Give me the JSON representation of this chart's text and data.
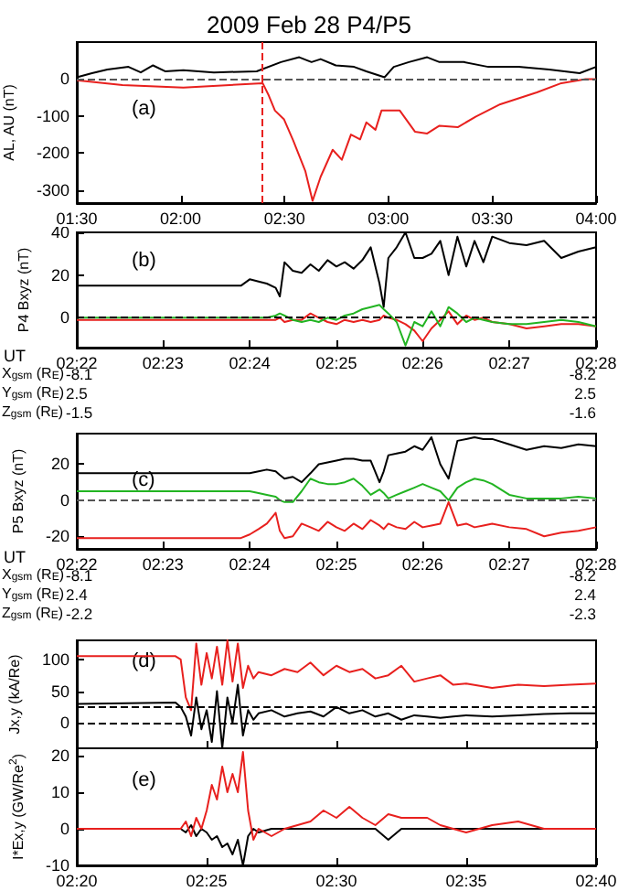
{
  "chart_data": [
    {
      "type": "line",
      "title": "2009 Feb 28 P4/P5",
      "ylabel": "AL, AU (nT)",
      "annotations": [
        "(a)"
      ],
      "xlim": [
        1.5,
        4.0
      ],
      "xticks": [
        {
          "value": 1.5,
          "label": "01:30"
        },
        {
          "value": 2.0,
          "label": "02:00"
        },
        {
          "value": 2.5,
          "label": "02:30"
        },
        {
          "value": 3.0,
          "label": "03:00"
        },
        {
          "value": 3.5,
          "label": "03:30"
        },
        {
          "value": 4.0,
          "label": "04:00"
        }
      ],
      "ylim": [
        -335,
        100
      ],
      "yticks": [
        -300,
        -200,
        -100,
        0
      ],
      "ref_lines": [
        {
          "axis": "y",
          "value": 0,
          "color": "#555555",
          "line_style": "dashed"
        },
        {
          "axis": "x",
          "value": 2.39,
          "color": "#e8201e",
          "line_style": "dashed"
        }
      ],
      "series": [
        {
          "color": "#000000",
          "x": [
            1.5,
            1.573,
            1.647,
            1.749,
            1.808,
            1.867,
            1.925,
            2.013,
            2.16,
            2.366,
            2.483,
            2.571,
            2.63,
            2.674,
            2.747,
            2.835,
            2.894,
            2.982,
            3.026,
            3.099,
            3.187,
            3.246,
            3.363,
            3.481,
            3.627,
            3.774,
            3.921,
            4.0
          ],
          "values": [
            5,
            16,
            26,
            33,
            18,
            37,
            21,
            24,
            18,
            21,
            46,
            59,
            46,
            54,
            37,
            33,
            21,
            5,
            33,
            46,
            59,
            46,
            46,
            33,
            33,
            26,
            16,
            33
          ]
        },
        {
          "color": "#e8201e",
          "x": [
            1.5,
            1.72,
            2.013,
            2.395,
            2.424,
            2.454,
            2.498,
            2.542,
            2.6,
            2.635,
            2.674,
            2.732,
            2.776,
            2.82,
            2.864,
            2.894,
            2.938,
            2.967,
            3.055,
            3.128,
            3.187,
            3.246,
            3.334,
            3.422,
            3.539,
            3.627,
            3.715,
            3.833,
            3.95,
            4.0
          ],
          "values": [
            -3,
            -16,
            -23,
            -11,
            -44,
            -85,
            -109,
            -166,
            -248,
            -329,
            -264,
            -191,
            -218,
            -150,
            -163,
            -117,
            -137,
            -85,
            -85,
            -142,
            -147,
            -126,
            -130,
            -101,
            -68,
            -52,
            -36,
            -11,
            0,
            0
          ]
        }
      ]
    },
    {
      "type": "line",
      "ylabel": "P4 Bxyz (nT)",
      "annotations": [
        "(b)",
        "UT",
        "X$_{gsm}$ (R$_{E}$)",
        "-8.1",
        "-8.2",
        "Y$_{gsm}$ (R$_{E}$)",
        "2.5",
        "2.5",
        "Z$_{gsm}$ (R$_{E}$)",
        "-1.5",
        "-1.6"
      ],
      "x": [
        2.3667,
        2.3983,
        2.4,
        2.4017,
        2.4033,
        2.405,
        2.4058,
        2.4067,
        2.4083,
        2.41,
        2.4117,
        2.4133,
        2.415,
        2.4167,
        2.4183,
        2.42,
        2.4217,
        2.4233,
        2.425,
        2.4258,
        2.4267,
        2.4283,
        2.43,
        2.4317,
        2.4333,
        2.435,
        2.4367,
        2.4383,
        2.44,
        2.4417,
        2.4433,
        2.445,
        2.4467,
        2.45,
        2.4533,
        2.4567,
        2.46,
        2.4633,
        2.4667
      ],
      "xlim": [
        2.3667,
        2.4667
      ],
      "xticks": [
        {
          "value": 2.3667,
          "label": "02:22"
        },
        {
          "value": 2.3833,
          "label": "02:23"
        },
        {
          "value": 2.4,
          "label": "02:24"
        },
        {
          "value": 2.4167,
          "label": "02:25"
        },
        {
          "value": 2.4333,
          "label": "02:26"
        },
        {
          "value": 2.45,
          "label": "02:27"
        },
        {
          "value": 2.4667,
          "label": "02:28"
        }
      ],
      "ylim": [
        -14,
        40
      ],
      "yticks": [
        0,
        20,
        40
      ],
      "ref_lines": [
        {
          "axis": "y",
          "value": 0,
          "color": "#000000",
          "line_style": "dashed"
        }
      ],
      "series": [
        {
          "color": "#000000",
          "values": [
            15,
            15,
            18,
            17,
            16,
            14,
            10,
            26,
            22,
            21,
            25,
            22,
            27,
            24,
            26,
            23,
            27,
            33,
            16,
            5,
            28,
            33,
            40,
            28,
            28,
            30,
            36,
            20,
            38,
            24,
            36,
            26,
            38,
            35,
            34,
            36,
            28,
            31,
            33
          ]
        },
        {
          "color": "#e8201e",
          "values": [
            -1,
            -1,
            -1,
            -1,
            -1,
            -1,
            0,
            -2,
            -1,
            -1,
            2,
            0,
            -2,
            -3,
            -1,
            -2,
            -1,
            -2,
            -1,
            1,
            0,
            -1,
            -3,
            -6,
            -11,
            -5,
            -1,
            3,
            -3,
            1,
            -1,
            0,
            -2,
            -3,
            -5,
            -4,
            -3,
            -3,
            -4
          ]
        },
        {
          "color": "#22b422",
          "values": [
            0,
            0,
            0,
            0,
            0,
            1,
            2,
            1,
            -1,
            -2,
            -1,
            -2,
            0,
            -1,
            1,
            2,
            4,
            5,
            6,
            4,
            2,
            -2,
            -13,
            -2,
            -4,
            3,
            -4,
            5,
            2,
            -2,
            0,
            -1,
            -2,
            -3,
            -3,
            -2,
            -1,
            -2,
            -4
          ]
        }
      ]
    },
    {
      "type": "line",
      "ylabel": "P5 Bxyz (nT)",
      "annotations": [
        "(c)",
        "UT",
        "X$_{gsm}$ (R$_{E}$)",
        "-8.1",
        "-8.2",
        "Y$_{gsm}$ (R$_{E}$)",
        "2.4",
        "2.4",
        "Z$_{gsm}$ (R$_{E}$)",
        "-2.2",
        "-2.3"
      ],
      "x": [
        2.3667,
        2.3983,
        2.4,
        2.4017,
        2.4033,
        2.405,
        2.4058,
        2.4067,
        2.4083,
        2.41,
        2.4117,
        2.4133,
        2.415,
        2.4167,
        2.4183,
        2.42,
        2.4217,
        2.4233,
        2.425,
        2.4258,
        2.4267,
        2.4283,
        2.43,
        2.4317,
        2.4333,
        2.435,
        2.4367,
        2.4383,
        2.44,
        2.4417,
        2.4433,
        2.445,
        2.4467,
        2.45,
        2.4533,
        2.4567,
        2.46,
        2.4633,
        2.4667
      ],
      "xlim": [
        2.3667,
        2.4667
      ],
      "xticks": [
        {
          "value": 2.3667,
          "label": "02:22"
        },
        {
          "value": 2.3833,
          "label": "02:23"
        },
        {
          "value": 2.4,
          "label": "02:24"
        },
        {
          "value": 2.4167,
          "label": "02:25"
        },
        {
          "value": 2.4333,
          "label": "02:26"
        },
        {
          "value": 2.45,
          "label": "02:27"
        },
        {
          "value": 2.4667,
          "label": "02:28"
        }
      ],
      "ylim": [
        -27,
        37
      ],
      "yticks": [
        -20,
        0,
        20
      ],
      "ref_lines": [
        {
          "axis": "y",
          "value": 0,
          "color": "#555555",
          "line_style": "dashed"
        }
      ],
      "series": [
        {
          "color": "#000000",
          "values": [
            15,
            15,
            15,
            16,
            17,
            16,
            14,
            12,
            13,
            10,
            15,
            20,
            21,
            22,
            23,
            23,
            22,
            22,
            10,
            16,
            25,
            26,
            27,
            30,
            28,
            35,
            20,
            12,
            33,
            34,
            35,
            34,
            34,
            31,
            28,
            30,
            29,
            31,
            30
          ]
        },
        {
          "color": "#22b422",
          "values": [
            5,
            5,
            5,
            4,
            3,
            2,
            0,
            -1,
            -1,
            5,
            12,
            10,
            9,
            9,
            10,
            12,
            8,
            3,
            6,
            4,
            1,
            3,
            5,
            7,
            9,
            7,
            5,
            0,
            7,
            10,
            12,
            11,
            9,
            3,
            1,
            1,
            1,
            2,
            1
          ]
        },
        {
          "color": "#e8201e",
          "values": [
            -21,
            -21,
            -19,
            -16,
            -13,
            -7,
            -17,
            -21,
            -20,
            -13,
            -15,
            -17,
            -12,
            -15,
            -17,
            -13,
            -16,
            -11,
            -14,
            -16,
            -13,
            -15,
            -16,
            -12,
            -15,
            -14,
            -13,
            -1,
            -14,
            -13,
            -15,
            -14,
            -13,
            -15,
            -16,
            -20,
            -18,
            -17,
            -15
          ]
        }
      ]
    },
    {
      "type": "line",
      "ylabel": "Jx,y (kA/Re)",
      "annotations": [
        "(d)"
      ],
      "tick_labels": "y",
      "x": [
        2.3333,
        2.3967,
        2.4,
        2.4033,
        2.4067,
        2.41,
        2.4133,
        2.4167,
        2.42,
        2.4233,
        2.4267,
        2.43,
        2.4333,
        2.4367,
        2.44,
        2.4433,
        2.4467,
        2.45,
        2.4583,
        2.4667,
        2.475,
        2.4833,
        2.4917,
        2.5,
        2.5083,
        2.5167,
        2.525,
        2.5333,
        2.5417,
        2.55,
        2.5583,
        2.5667,
        2.575,
        2.5833,
        2.6,
        2.6167,
        2.6333,
        2.65,
        2.6667
      ],
      "xlim": [
        2.3333,
        2.6667
      ],
      "xticks": [
        {
          "value": 2.3333,
          "label": null
        },
        {
          "value": 2.4167,
          "label": null
        },
        {
          "value": 2.5,
          "label": null
        },
        {
          "value": 2.5833,
          "label": null
        },
        {
          "value": 2.6667,
          "label": null
        }
      ],
      "ylim": [
        -40,
        130
      ],
      "yticks": [
        0,
        50,
        100
      ],
      "ref_lines": [
        {
          "axis": "y",
          "value": 0,
          "color": "#000000",
          "line_style": "dashed"
        },
        {
          "axis": "y",
          "value": 25,
          "color": "#000000",
          "line_style": "dashed"
        }
      ],
      "series": [
        {
          "color": "#e8201e",
          "values": [
            105,
            105,
            100,
            40,
            20,
            125,
            60,
            110,
            70,
            120,
            60,
            130,
            65,
            125,
            55,
            90,
            70,
            80,
            75,
            85,
            80,
            95,
            75,
            90,
            80,
            85,
            70,
            75,
            90,
            65,
            70,
            75,
            60,
            62,
            55,
            60,
            58,
            60,
            62
          ]
        },
        {
          "color": "#000000",
          "values": [
            30,
            32,
            25,
            10,
            -20,
            40,
            -10,
            20,
            -30,
            50,
            -40,
            40,
            0,
            60,
            -20,
            20,
            5,
            15,
            20,
            10,
            15,
            18,
            10,
            25,
            15,
            20,
            10,
            15,
            5,
            12,
            10,
            8,
            10,
            12,
            10,
            12,
            14,
            15,
            15
          ]
        }
      ]
    },
    {
      "type": "line",
      "ylabel": "I*Ex,y (GW/Re$^{2}$)",
      "annotations": [
        "(e)"
      ],
      "x": [
        2.3333,
        2.3967,
        2.4,
        2.4033,
        2.4067,
        2.41,
        2.4133,
        2.4167,
        2.42,
        2.4233,
        2.4267,
        2.43,
        2.4333,
        2.4367,
        2.44,
        2.4433,
        2.4467,
        2.45,
        2.4583,
        2.4667,
        2.475,
        2.4833,
        2.4917,
        2.5,
        2.5083,
        2.5167,
        2.525,
        2.5333,
        2.5417,
        2.55,
        2.5583,
        2.5667,
        2.575,
        2.5833,
        2.6,
        2.6167,
        2.6333,
        2.65,
        2.6667
      ],
      "xlim": [
        2.3333,
        2.6667
      ],
      "xticks": [
        {
          "value": 2.3333,
          "label": "02:20"
        },
        {
          "value": 2.4167,
          "label": "02:25"
        },
        {
          "value": 2.5,
          "label": "02:30"
        },
        {
          "value": 2.5833,
          "label": "02:35"
        },
        {
          "value": 2.6667,
          "label": "02:40"
        }
      ],
      "ylim": [
        -10,
        22
      ],
      "yticks": [
        -10,
        0,
        10,
        20
      ],
      "series": [
        {
          "color": "#000000",
          "values": [
            0,
            0,
            0,
            -1,
            1,
            -2,
            0,
            -1,
            -3,
            -2,
            -5,
            -4,
            -7,
            -3,
            -10,
            -2,
            0,
            -1,
            0,
            0,
            0,
            0,
            0,
            0,
            0,
            0,
            0,
            -3,
            0,
            0,
            0,
            0,
            0,
            0,
            0,
            0,
            0,
            0,
            0
          ]
        },
        {
          "color": "#e8201e",
          "values": [
            0,
            0,
            0,
            2,
            -2,
            3,
            0,
            5,
            12,
            8,
            17,
            10,
            15,
            10,
            21,
            5,
            -3,
            0,
            -2,
            0,
            1,
            2,
            5,
            3,
            6,
            3,
            1,
            4,
            3,
            3,
            3,
            1,
            0,
            -1,
            1,
            2,
            0,
            0,
            0
          ]
        }
      ]
    }
  ]
}
